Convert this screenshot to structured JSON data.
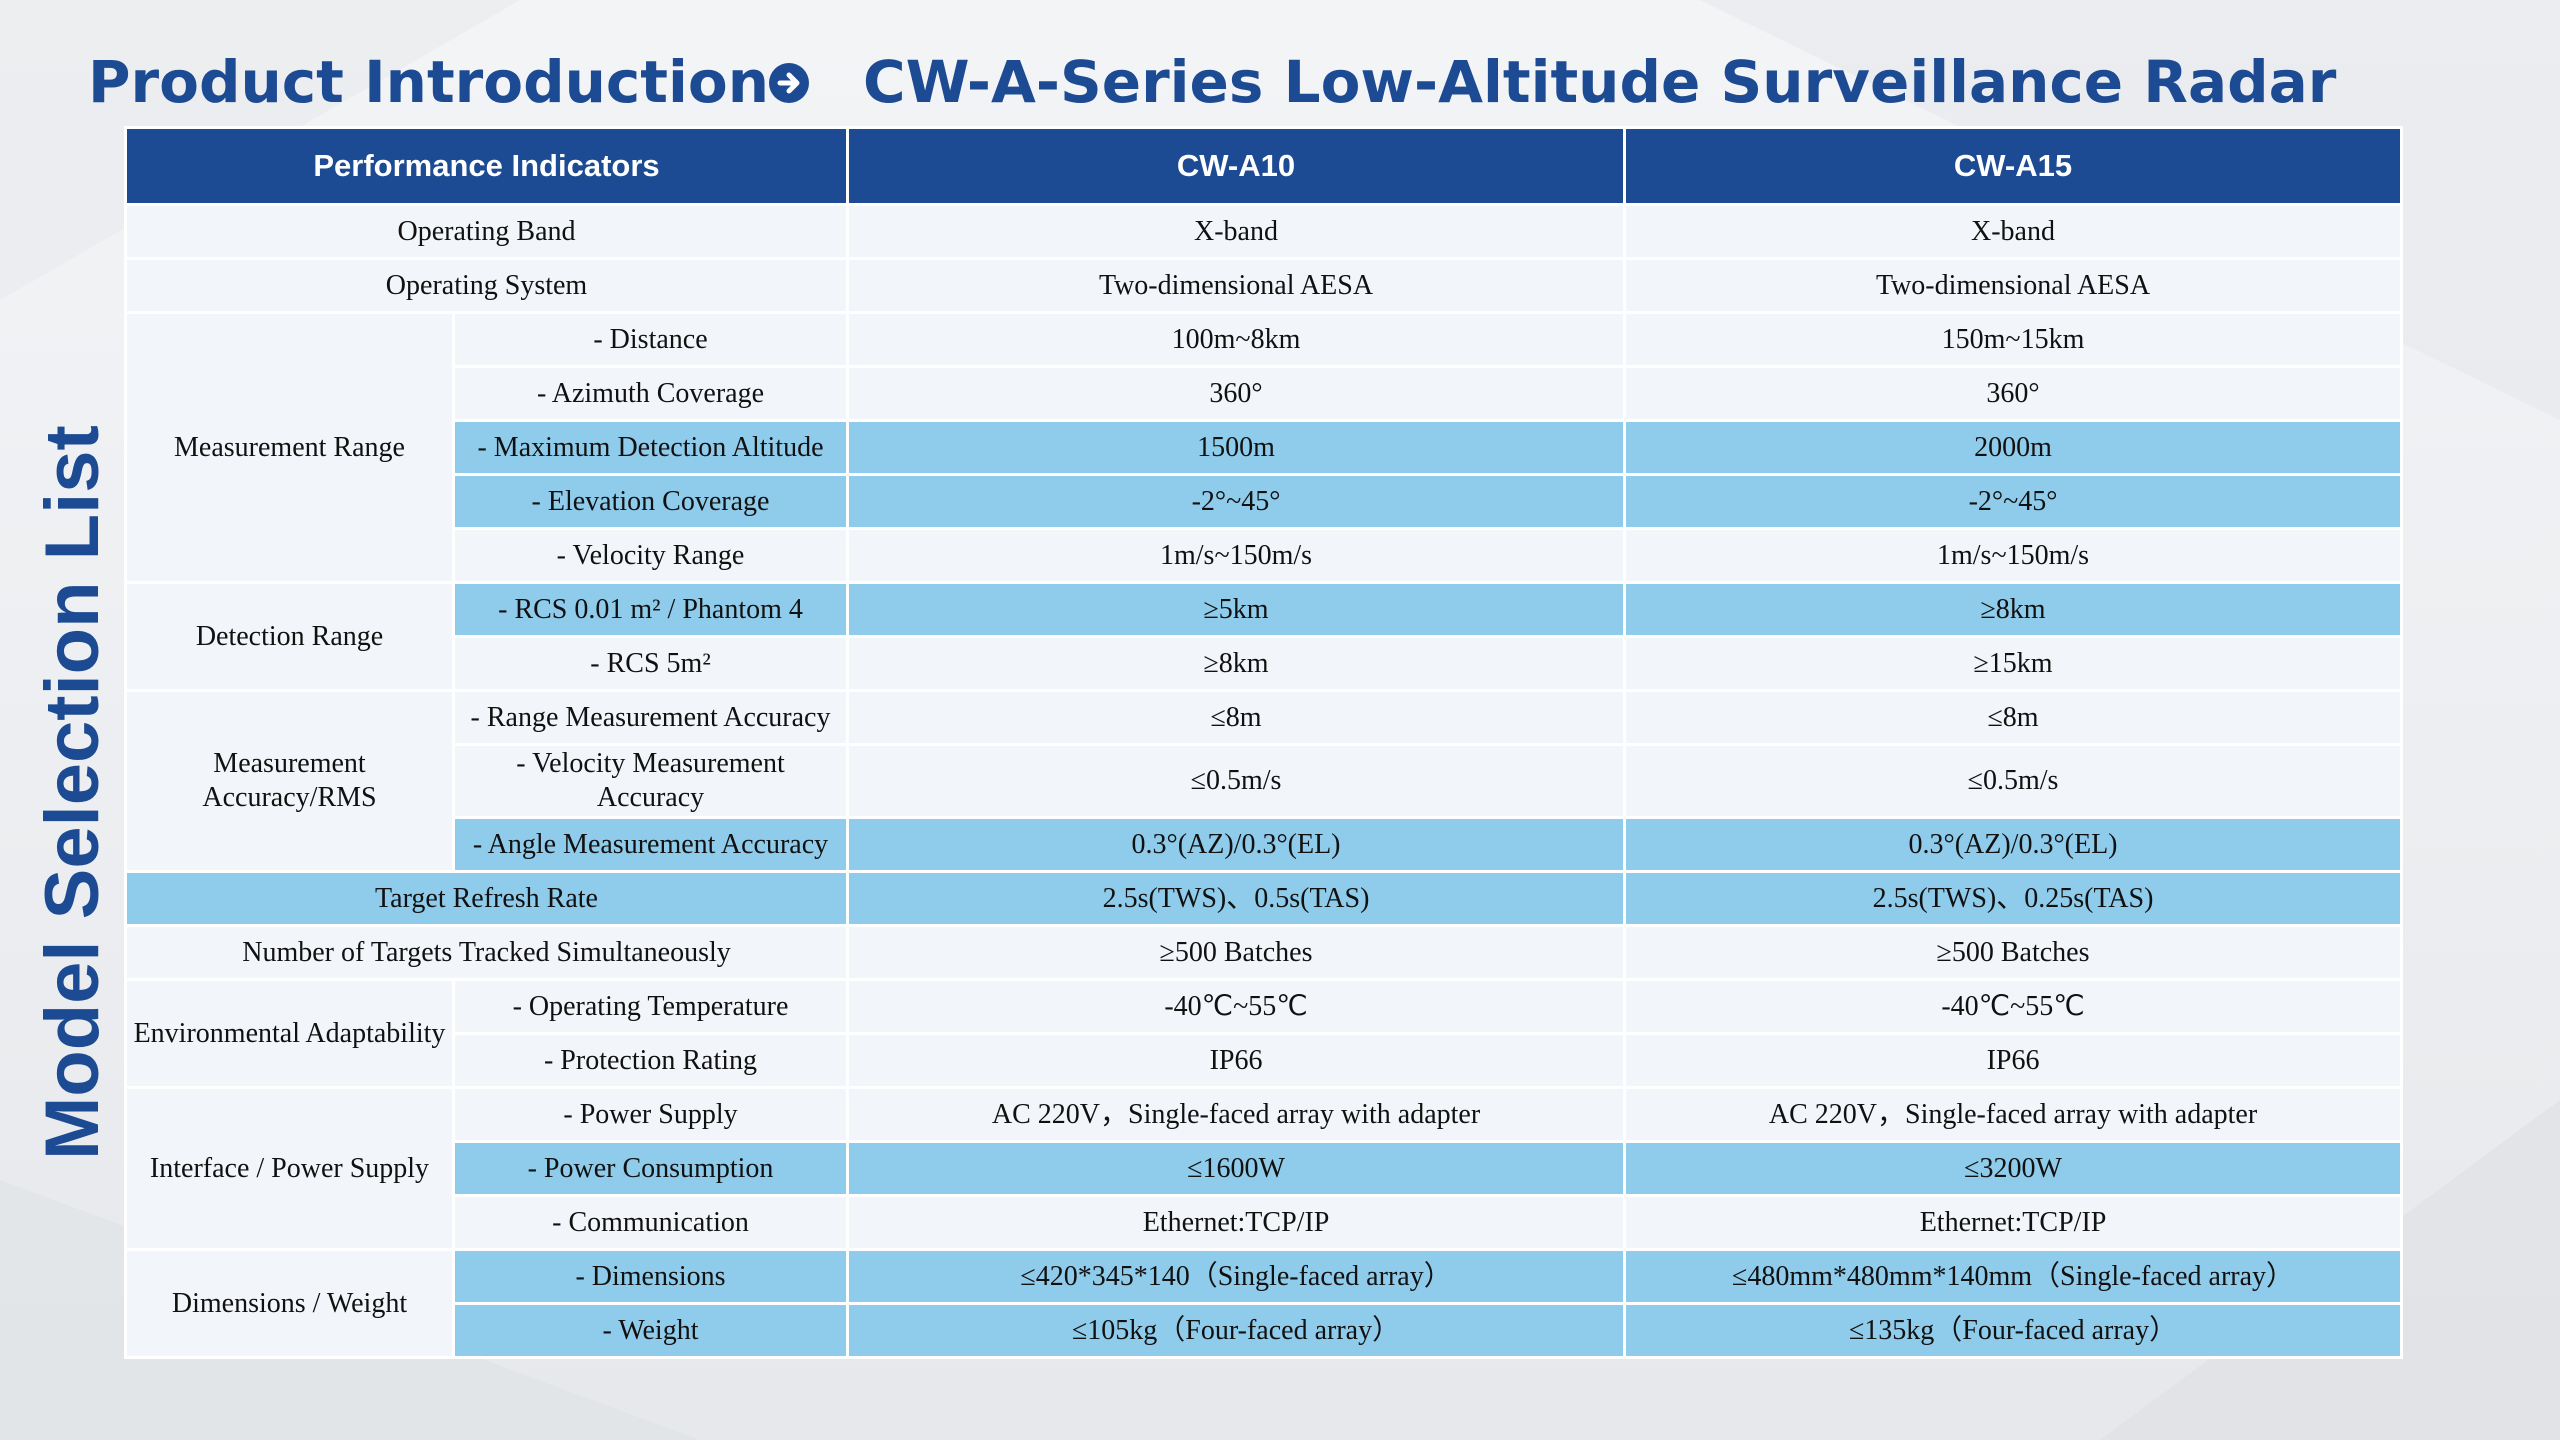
{
  "header": {
    "title_left": "Product Introduction",
    "title_right": "CW-A-Series Low-Altitude Surveillance Radar"
  },
  "side_title": "Model Selection List",
  "table": {
    "headers": [
      "Performance Indicators",
      "CW-A10",
      "CW-A15"
    ],
    "groups": {
      "measurement_range": "Measurement Range",
      "detection_range": "Detection Range",
      "measurement_accuracy": "Measurement Accuracy/RMS",
      "environmental": "Environmental Adaptability",
      "interface_power": "Interface / Power Supply",
      "dimensions_weight": "Dimensions / Weight"
    },
    "rows": [
      {
        "label": "Operating Band",
        "a10": "X-band",
        "a15": "X-band"
      },
      {
        "label": "Operating System",
        "a10": "Two-dimensional AESA",
        "a15": "Two-dimensional AESA"
      },
      {
        "label": "- Distance",
        "a10": "100m~8km",
        "a15": "150m~15km"
      },
      {
        "label": "- Azimuth Coverage",
        "a10": "360°",
        "a15": "360°"
      },
      {
        "label": "- Maximum Detection Altitude",
        "a10": "1500m",
        "a15": "2000m"
      },
      {
        "label": "- Elevation Coverage",
        "a10": "-2°~45°",
        "a15": "-2°~45°"
      },
      {
        "label": "- Velocity Range",
        "a10": "1m/s~150m/s",
        "a15": "1m/s~150m/s"
      },
      {
        "label": "- RCS 0.01 m² / Phantom 4",
        "a10": "≥5km",
        "a15": "≥8km"
      },
      {
        "label": "- RCS 5m²",
        "a10": "≥8km",
        "a15": "≥15km"
      },
      {
        "label": "- Range Measurement Accuracy",
        "a10": "≤8m",
        "a15": "≤8m"
      },
      {
        "label": "- Velocity Measurement Accuracy",
        "a10": "≤0.5m/s",
        "a15": "≤0.5m/s"
      },
      {
        "label": "- Angle Measurement Accuracy",
        "a10": "0.3°(AZ)/0.3°(EL)",
        "a15": "0.3°(AZ)/0.3°(EL)"
      },
      {
        "label": "Target Refresh Rate",
        "a10": "2.5s(TWS)、0.5s(TAS)",
        "a15": "2.5s(TWS)、0.25s(TAS)"
      },
      {
        "label": "Number of Targets Tracked Simultaneously",
        "a10": "≥500 Batches",
        "a15": "≥500 Batches"
      },
      {
        "label": "- Operating Temperature",
        "a10": "-40℃~55℃",
        "a15": "-40℃~55℃"
      },
      {
        "label": "- Protection Rating",
        "a10": "IP66",
        "a15": "IP66"
      },
      {
        "label": "- Power Supply",
        "a10": "AC 220V，Single-faced array with adapter",
        "a15": "AC 220V，Single-faced array with adapter"
      },
      {
        "label": "- Power Consumption",
        "a10": "≤1600W",
        "a15": "≤3200W"
      },
      {
        "label": "- Communication",
        "a10": "Ethernet:TCP/IP",
        "a15": "Ethernet:TCP/IP"
      },
      {
        "label": "- Dimensions",
        "a10": "≤420*345*140（Single-faced array）",
        "a15": "≤480mm*480mm*140mm（Single-faced array）"
      },
      {
        "label": "- Weight",
        "a10": "≤105kg（Four-faced array）",
        "a15": "≤135kg（Four-faced array）"
      }
    ]
  },
  "colors": {
    "brand_blue": "#1d4b93",
    "highlight": "#8fcbea",
    "row_bg": "#f2f5fa"
  },
  "icons": {
    "header_arrow": "arrow-right-circle-icon"
  }
}
